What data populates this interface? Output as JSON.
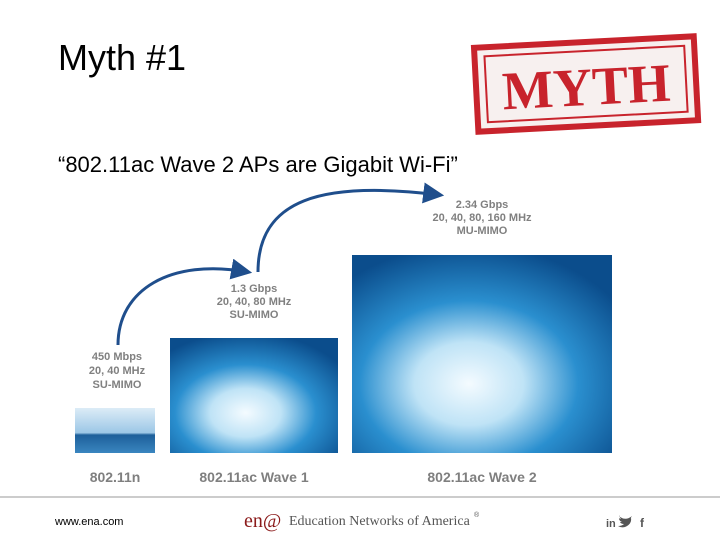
{
  "title": "Myth #1",
  "stamp": "MYTH",
  "quote": "“802.11ac Wave 2 APs are Gigabit Wi-Fi”",
  "tiers": [
    {
      "name": "802.11n",
      "speed": "450 Mbps",
      "widths": "20, 40 MHz",
      "mimo": "SU-MIMO"
    },
    {
      "name": "802.11ac Wave 1",
      "speed": "1.3 Gbps",
      "widths": "20, 40, 80 MHz",
      "mimo": "SU-MIMO"
    },
    {
      "name": "802.11ac Wave 2",
      "speed": "2.34 Gbps",
      "widths": "20, 40, 80, 160 MHz",
      "mimo": "MU-MIMO"
    }
  ],
  "footer": {
    "url": "www.ena.com",
    "logo": "en@",
    "org": "Education Networks of America",
    "mark": "®",
    "social": [
      "in",
      "f"
    ]
  }
}
